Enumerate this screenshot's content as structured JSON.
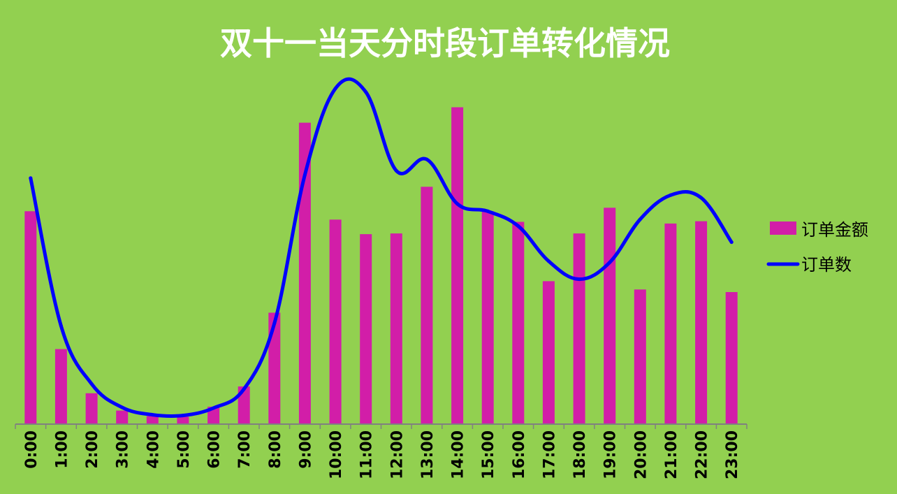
{
  "chart_data": {
    "type": "bar+line",
    "title": "双十一当天分时段订单转化情况",
    "categories": [
      "0:00",
      "1:00",
      "2:00",
      "3:00",
      "4:00",
      "5:00",
      "6:00",
      "7:00",
      "8:00",
      "9:00",
      "10:00",
      "11:00",
      "12:00",
      "13:00",
      "14:00",
      "15:00",
      "16:00",
      "17:00",
      "18:00",
      "19:00",
      "20:00",
      "21:00",
      "22:00",
      "23:00"
    ],
    "series": [
      {
        "name": "订单金额",
        "type": "bar",
        "color": "#d21ea8",
        "values": [
          66.1,
          23.3,
          9.6,
          4.2,
          2.5,
          2.3,
          5.4,
          11.7,
          34.6,
          93.6,
          63.5,
          59.0,
          59.2,
          73.7,
          98.4,
          66.1,
          62.8,
          44.4,
          59.2,
          67.2,
          41.8,
          62.3,
          63.0,
          41.0
        ]
      },
      {
        "name": "订单数",
        "type": "line",
        "color": "#0000ff",
        "values": [
          76.4,
          30.5,
          12.5,
          5.2,
          2.9,
          2.7,
          5.0,
          10.9,
          31.3,
          77.4,
          104.2,
          103.1,
          78.7,
          82.2,
          68.4,
          66.1,
          61.5,
          50.6,
          45.0,
          50.2,
          63.6,
          71.1,
          70.3,
          56.5
        ]
      }
    ],
    "ylim": [
      0,
      110
    ],
    "y_axis_visible": false,
    "grid": false,
    "legend": "right"
  }
}
